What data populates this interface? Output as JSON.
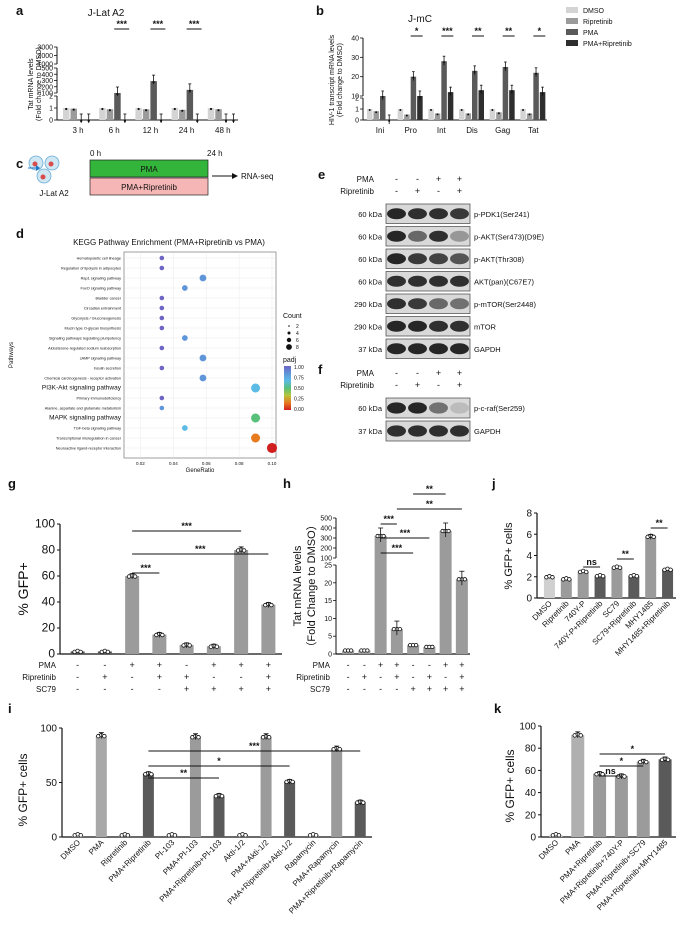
{
  "palette": {
    "light": "#d4d4d4",
    "mid": "#9b9b9b",
    "dark": "#5a5a5a",
    "black": "#2e2e2e",
    "green": "#33b53b",
    "pink": "#f7b6b6"
  },
  "panels": {
    "a": "a",
    "b": "b",
    "c": "c",
    "d": "d",
    "e": "e",
    "f": "f",
    "g": "g",
    "h": "h",
    "i": "i",
    "j": "j",
    "k": "k"
  },
  "chart_data": [
    {
      "panel": "a",
      "type": "bar",
      "title": "J-Lat A2",
      "ylabel": "Tat mRNA levels (Fold change to DMSO)",
      "categories": [
        "3 h",
        "6 h",
        "12 h",
        "24 h",
        "48 h"
      ],
      "yticks": [
        "0",
        "1",
        "2",
        "100",
        "200",
        "300",
        "400",
        "500",
        "1000",
        "2000",
        "3000"
      ],
      "series": [
        {
          "name": "DMSO",
          "values": [
            1.0,
            1.0,
            1.0,
            1.0,
            1.0
          ]
        },
        {
          "name": "Ripretinib",
          "values": [
            0.95,
            0.9,
            0.9,
            0.85,
            0.9
          ]
        },
        {
          "name": "PMA",
          "values": [
            40,
            100,
            290,
            150,
            30
          ]
        },
        {
          "name": "PMA+Ripretinib",
          "values": [
            25,
            20,
            50,
            25,
            15
          ]
        }
      ],
      "significance": [
        "",
        "***",
        "***",
        "***",
        ""
      ]
    },
    {
      "panel": "b",
      "type": "bar",
      "title": "J-mC",
      "ylabel": "HIV-1 transcript mRNA levels (Fold change to DMSO)",
      "categories": [
        "Ini",
        "Pro",
        "Int",
        "Dis",
        "Gag",
        "Tat"
      ],
      "yticks": [
        "0",
        "1",
        "2",
        "10",
        "20",
        "30",
        "40"
      ],
      "series": [
        {
          "name": "DMSO",
          "values": [
            1.0,
            1.0,
            1.0,
            1.0,
            1.0,
            1.0
          ]
        },
        {
          "name": "Ripretinib",
          "values": [
            0.8,
            0.5,
            0.6,
            0.6,
            0.7,
            0.6
          ]
        },
        {
          "name": "PMA",
          "values": [
            10,
            20,
            28,
            23,
            25,
            22
          ]
        },
        {
          "name": "PMA+Ripretinib",
          "values": [
            6,
            10,
            12,
            13,
            13,
            12
          ]
        }
      ],
      "significance": [
        "",
        "*",
        "***",
        "**",
        "**",
        "*"
      ]
    },
    {
      "panel": "g",
      "type": "bar",
      "ylabel": "% GFP+ cells",
      "yticks": [
        "0",
        "20",
        "40",
        "60",
        "80",
        "100"
      ],
      "ylim": [
        0,
        100
      ],
      "values": [
        2,
        2,
        60,
        15,
        7,
        6,
        80,
        38
      ],
      "treatments": [
        {
          "label": "PMA",
          "signs": [
            "-",
            "-",
            "+",
            "+",
            "-",
            "+",
            "+",
            "+"
          ]
        },
        {
          "label": "Ripretinib",
          "signs": [
            "-",
            "+",
            "-",
            "+",
            "+",
            "-",
            "-",
            "+"
          ]
        },
        {
          "label": "SC79",
          "signs": [
            "-",
            "-",
            "-",
            "-",
            "+",
            "+",
            "+",
            "+"
          ]
        }
      ],
      "significance": [
        "***",
        "***",
        "***"
      ]
    },
    {
      "panel": "h",
      "type": "bar",
      "ylabel": "Tat mRNA levels（Fold Change to DMSO）",
      "yticks": [
        "0",
        "5",
        "10",
        "15",
        "20",
        "25",
        "100",
        "200",
        "300",
        "400",
        "500"
      ],
      "values": [
        1,
        1,
        320,
        7,
        2.5,
        2,
        370,
        21
      ],
      "treatments": [
        {
          "label": "PMA",
          "signs": [
            "-",
            "-",
            "+",
            "+",
            "-",
            "-",
            "+",
            "+"
          ]
        },
        {
          "label": "Ripretinib",
          "signs": [
            "-",
            "+",
            "-",
            "+",
            "-",
            "+",
            "-",
            "+"
          ]
        },
        {
          "label": "SC79",
          "signs": [
            "-",
            "-",
            "-",
            "-",
            "+",
            "+",
            "+",
            "+"
          ]
        }
      ],
      "significance": [
        "***",
        "***",
        "***",
        "**",
        "**"
      ]
    },
    {
      "panel": "j",
      "type": "bar",
      "ylabel": "% GFP+ cells",
      "yticks": [
        "0",
        "2",
        "4",
        "6",
        "8"
      ],
      "ylim": [
        0,
        8
      ],
      "categories": [
        "DMSO",
        "Ripretinib",
        "740Y-P",
        "740Y-P+Ripretinib",
        "SC79",
        "SC79+Ripretinib",
        "MHY1485",
        "MHY1485+Ripretinib"
      ],
      "values": [
        2.0,
        1.8,
        2.5,
        2.1,
        2.9,
        2.1,
        5.8,
        2.7
      ],
      "significance": [
        "ns",
        "**",
        "**"
      ]
    },
    {
      "panel": "i",
      "type": "bar",
      "ylabel": "% GFP+ cells",
      "yticks": [
        "0",
        "50",
        "100"
      ],
      "ylim": [
        0,
        100
      ],
      "categories": [
        "DMSO",
        "PMA",
        "Ripretinib",
        "PMA+Ripretinib",
        "PI-103",
        "PMA+PI-103",
        "PMA+Ripretinib+PI-103",
        "Akti-1/2",
        "PMA+Akti-1/2",
        "PMA+Ripretinib+Akti-1/2",
        "Rapamycin",
        "PMA+Rapamycin",
        "PMA+Ripretinib+Rapamycin"
      ],
      "values": [
        2,
        93,
        2,
        58,
        2,
        92,
        38,
        2,
        92,
        51,
        2,
        81,
        32
      ],
      "significance": [
        "**",
        "*",
        "***"
      ]
    },
    {
      "panel": "k",
      "type": "bar",
      "ylabel": "% GFP+ cells",
      "yticks": [
        "0",
        "20",
        "40",
        "60",
        "80",
        "100"
      ],
      "ylim": [
        0,
        100
      ],
      "categories": [
        "DMSO",
        "PMA",
        "PMA+Ripretinib",
        "PMA+Ripretinib+740Y-P",
        "PMA+Ripretinib+SC79",
        "PMA+Ripretinib+MHY1485"
      ],
      "values": [
        2,
        92,
        57,
        55,
        68,
        70
      ],
      "significance": [
        "ns",
        "*",
        "*"
      ]
    },
    {
      "panel": "d",
      "type": "scatter",
      "title": "KEGG Pathway Enrichment (PMA+Ripretinib vs PMA)",
      "xlabel": "GeneRatio",
      "ylabel": "Pathways",
      "xticks": [
        "0.02",
        "0.04",
        "0.06",
        "0.08",
        "0.10"
      ],
      "xlim": [
        0.01,
        0.1
      ],
      "pathways": [
        "Hematopoietic cell lineage",
        "Regulation of lipolysis in adipocytes",
        "Rap1 signaling pathway",
        "FoxO signaling pathway",
        "Bladder cancer",
        "Circadian entrainment",
        "Glycolysis / Gluconeogenesis",
        "Mucin type O-glycan biosynthesis",
        "Signaling pathways regulating pluripotency",
        "Aldosterone-regulated sodium reabsorption",
        "cAMP signaling pathway",
        "Insulin secretion",
        "Chemical carcinogenesis - receptor activation",
        "PI3K-Akt signaling pathway",
        "Primary immunodeficiency",
        "Alanine, aspartate and glutamate metabolism",
        "MAPK signaling pathway",
        "TGF-beta signaling pathway",
        "Transcriptional misregulation in cancer",
        "Neuroactive ligand-receptor interaction"
      ],
      "gene_ratio": [
        0.033,
        0.033,
        0.058,
        0.047,
        0.033,
        0.033,
        0.033,
        0.033,
        0.047,
        0.033,
        0.058,
        0.033,
        0.058,
        0.09,
        0.033,
        0.033,
        0.09,
        0.047,
        0.09,
        0.1
      ],
      "count": [
        2,
        2,
        4,
        3,
        2,
        2,
        2,
        2,
        3,
        2,
        4,
        2,
        4,
        6,
        2,
        2,
        6,
        3,
        6,
        7
      ],
      "padj": [
        1.0,
        1.0,
        0.85,
        0.85,
        1.0,
        1.0,
        1.0,
        1.0,
        0.85,
        1.0,
        0.8,
        1.0,
        0.8,
        0.7,
        1.0,
        0.9,
        0.5,
        0.6,
        0.25,
        0.05
      ],
      "legend": {
        "count_title": "Count",
        "count_values": [
          "2",
          "4",
          "6",
          "8"
        ],
        "padj_title": "padj",
        "padj_ticks": [
          "1.00",
          "0.75",
          "0.50",
          "0.25",
          "0.00"
        ]
      }
    }
  ],
  "scheme_c": {
    "time0": "0 h",
    "time24": "24 h",
    "cells": "J-Lat A2",
    "pma": "PMA",
    "combo": "PMA+Ripretinib",
    "readout": "RNA-seq"
  },
  "blot_e": {
    "treatments": [
      {
        "label": "PMA",
        "signs": [
          "-",
          "-",
          "+",
          "+"
        ]
      },
      {
        "label": "Ripretinib",
        "signs": [
          "-",
          "+",
          "-",
          "+"
        ]
      }
    ],
    "rows": [
      {
        "kda": "60 kDa",
        "protein": "p-PDK1(Ser241)"
      },
      {
        "kda": "60 kDa",
        "protein": "p-AKT(Ser473)(D9E)"
      },
      {
        "kda": "60 kDa",
        "protein": "p-AKT(Thr308)"
      },
      {
        "kda": "60 kDa",
        "protein": "AKT(pan)(C67E7)"
      },
      {
        "kda": "290 kDa",
        "protein": "p-mTOR(Ser2448)"
      },
      {
        "kda": "290 kDa",
        "protein": "mTOR"
      },
      {
        "kda": "37 kDa",
        "protein": "GAPDH"
      }
    ]
  },
  "blot_f": {
    "treatments": [
      {
        "label": "PMA",
        "signs": [
          "-",
          "-",
          "+",
          "+"
        ]
      },
      {
        "label": "Ripretinib",
        "signs": [
          "-",
          "+",
          "-",
          "+"
        ]
      }
    ],
    "rows": [
      {
        "kda": "60 kDa",
        "protein": "p-c-raf(Ser259)"
      },
      {
        "kda": "37 kDa",
        "protein": "GAPDH"
      }
    ]
  }
}
